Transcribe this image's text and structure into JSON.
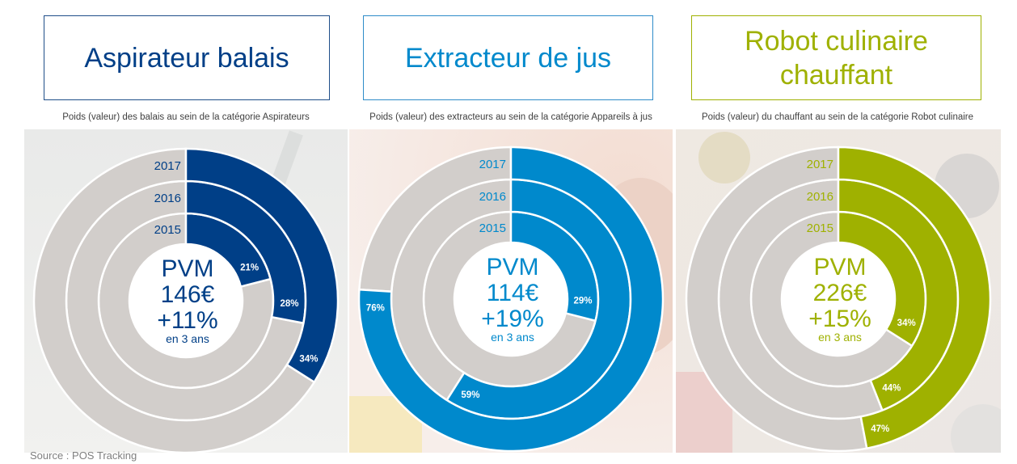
{
  "source": "Source : POS Tracking",
  "colors": {
    "grey": "#d2cecb",
    "blue_dark": "#003f87",
    "blue_light": "#0089cc",
    "green": "#9fb100"
  },
  "chart_data": [
    {
      "type": "donut",
      "title": "Aspirateur balais",
      "subtitle": "Poids (valeur) des balais au sein de la catégorie Aspirateurs",
      "color": "#003f87",
      "background": "bright-carpet",
      "rings": [
        {
          "year": "2015",
          "value": 21,
          "label": "21%"
        },
        {
          "year": "2016",
          "value": 28,
          "label": "28%"
        },
        {
          "year": "2017",
          "value": 34,
          "label": "34%"
        }
      ],
      "center": {
        "line1": "PVM",
        "line2": "146€",
        "line3": "+11%",
        "line4": "en 3 ans"
      }
    },
    {
      "type": "donut",
      "title": "Extracteur de jus",
      "subtitle": "Poids (valeur) des extracteurs au sein de la catégorie Appareils à jus",
      "color": "#0089cc",
      "background": "juice-photo",
      "rings": [
        {
          "year": "2015",
          "value": 29,
          "label": "29%"
        },
        {
          "year": "2016",
          "value": 59,
          "label": "59%"
        },
        {
          "year": "2017",
          "value": 76,
          "label": "76%"
        }
      ],
      "center": {
        "line1": "PVM",
        "line2": "114€",
        "line3": "+19%",
        "line4": "en 3 ans"
      }
    },
    {
      "type": "donut",
      "title": "Robot culinaire chauffant",
      "subtitle": "Poids (valeur) du chauffant au sein de la catégorie Robot culinaire",
      "color": "#9fb100",
      "background": "kitchen-photo",
      "rings": [
        {
          "year": "2015",
          "value": 34,
          "label": "34%"
        },
        {
          "year": "2016",
          "value": 44,
          "label": "44%"
        },
        {
          "year": "2017",
          "value": 47,
          "label": "47%"
        }
      ],
      "center": {
        "line1": "PVM",
        "line2": "226€",
        "line3": "+15%",
        "line4": "en 3 ans"
      }
    }
  ]
}
